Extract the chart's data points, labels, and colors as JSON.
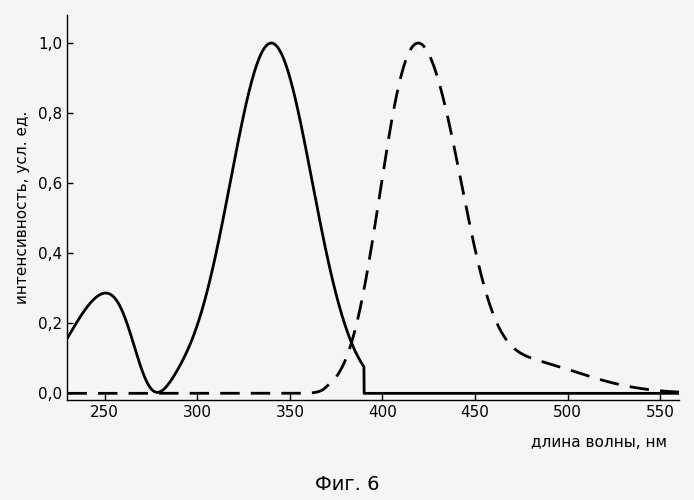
{
  "title": "Фиг. 6",
  "xlabel": "длина волны, нм",
  "ylabel": "интенсивность, усл. ед.",
  "xlim": [
    230,
    560
  ],
  "ylim": [
    -0.02,
    1.08
  ],
  "xticks": [
    250,
    300,
    350,
    400,
    450,
    500,
    550
  ],
  "yticks": [
    0.0,
    0.2,
    0.4,
    0.6,
    0.8,
    1.0
  ],
  "ytick_labels": [
    "0,0",
    "0,2",
    "0,4",
    "0,6",
    "0,8",
    "1,0"
  ],
  "solid_color": "#000000",
  "dashed_color": "#000000",
  "background_color": "#f5f5f5"
}
